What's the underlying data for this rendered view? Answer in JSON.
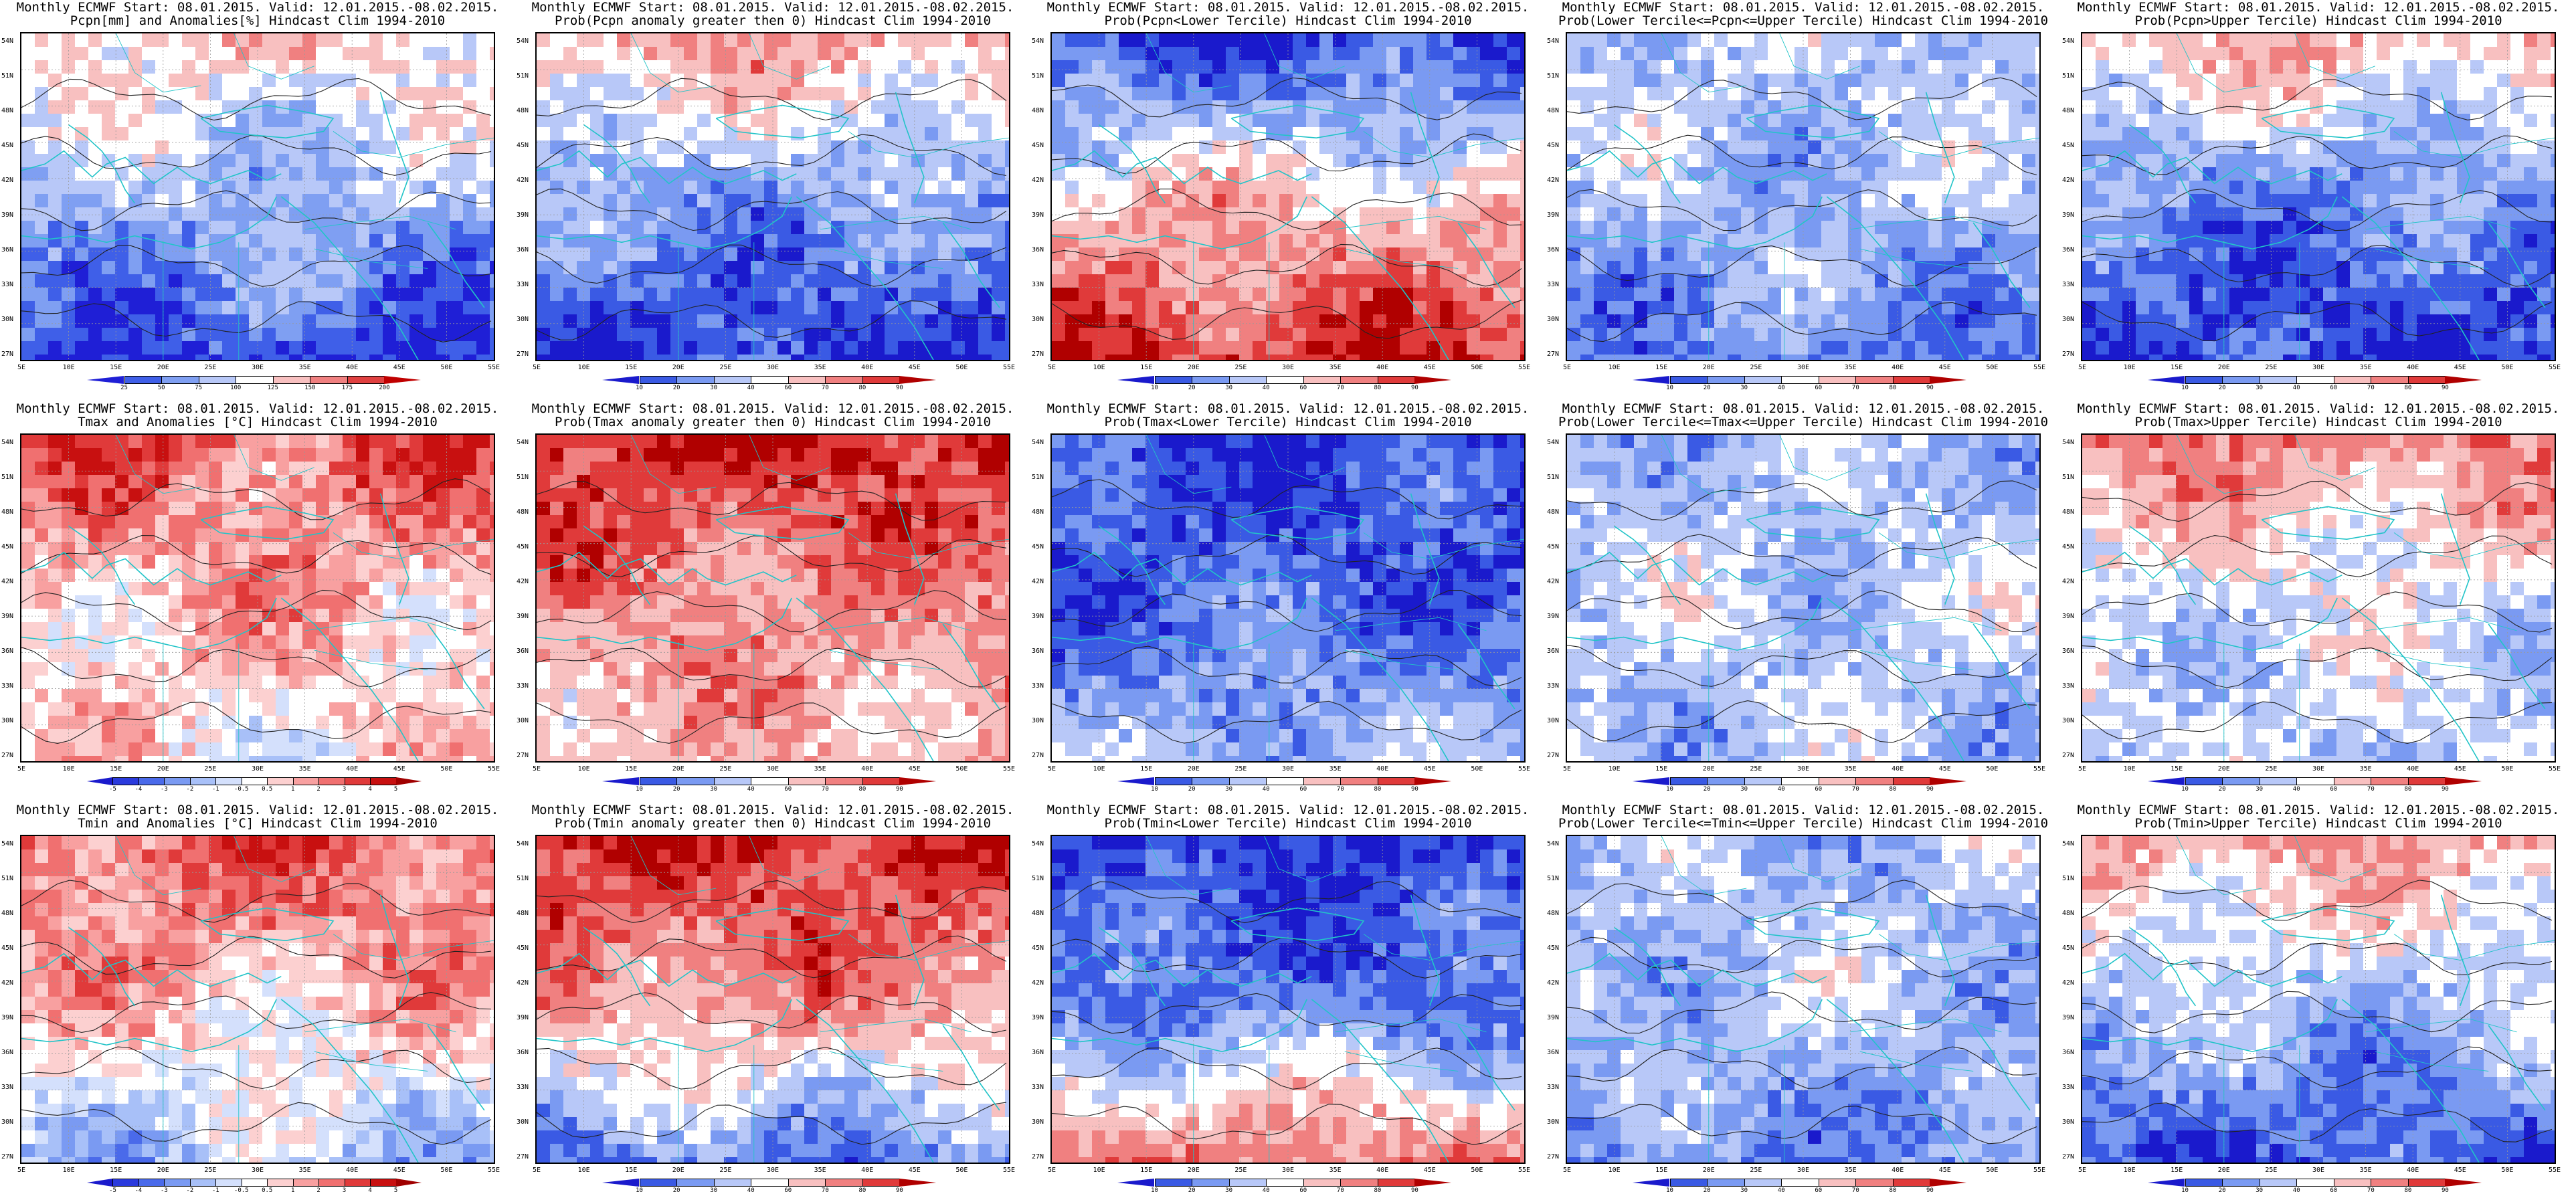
{
  "header_prefix": "Monthly ECMWF Start: 08.01.2015. Valid: 12.01.2015.-08.02.2015.",
  "lat_labels": [
    "54N",
    "51N",
    "48N",
    "45N",
    "42N",
    "39N",
    "36N",
    "33N",
    "30N",
    "27N"
  ],
  "lon_labels": [
    "5E",
    "10E",
    "15E",
    "20E",
    "25E",
    "30E",
    "35E",
    "40E",
    "45E",
    "50E",
    "55E"
  ],
  "colorbars": {
    "pcpn_anom": {
      "levels": [
        "25",
        "50",
        "75",
        "100",
        "125",
        "150",
        "175",
        "200"
      ],
      "colors": [
        "#1f1fd6",
        "#3f5fe8",
        "#7f9ff2",
        "#b8c8f8",
        "#ffffff",
        "#f8c0c0",
        "#f08080",
        "#e04040",
        "#c00000"
      ]
    },
    "temp_anom": {
      "levels": [
        "-5",
        "-4",
        "-3",
        "-2",
        "-1",
        "-0.5",
        "0.5",
        "1",
        "2",
        "3",
        "4",
        "5"
      ],
      "colors": [
        "#1a1acc",
        "#2a3add",
        "#4a6aea",
        "#7a9af2",
        "#a8c0f8",
        "#d4e0fc",
        "#ffffff",
        "#fcd0d0",
        "#f8a0a0",
        "#f07070",
        "#e03a3a",
        "#c81010",
        "#a00000"
      ]
    },
    "prob": {
      "levels": [
        "10",
        "20",
        "30",
        "40",
        "60",
        "70",
        "80",
        "90"
      ],
      "colors": [
        "#1a1acc",
        "#3a5ae4",
        "#7a9af2",
        "#b8c8f8",
        "#ffffff",
        "#f8c0c0",
        "#f08080",
        "#e03a3a",
        "#b00000"
      ]
    }
  },
  "rows": [
    {
      "variable": "pcpn",
      "panels": [
        {
          "title": "Pcpn[mm] and Anomalies[%] Hindcast Clim 1994-2010",
          "cbar": "pcpn_anom",
          "map": {
            "north": 0.15,
            "mid": -0.35,
            "south": -0.85,
            "seed": 3
          }
        },
        {
          "title": "Prob(Pcpn anomaly greater then 0) Hindcast Clim 1994-2010",
          "cbar": "prob",
          "map": {
            "north": 0.35,
            "mid": -0.45,
            "south": -0.9,
            "seed": 7
          }
        },
        {
          "title": "Prob(Pcpn<Lower Tercile) Hindcast Clim 1994-2010",
          "cbar": "prob",
          "map": {
            "north": -0.85,
            "mid": 0.2,
            "south": 0.85,
            "seed": 11
          }
        },
        {
          "title": "Prob(Lower Tercile<=Pcpn<=Upper Tercile) Hindcast Clim 1994-2010",
          "cbar": "prob",
          "map": {
            "north": -0.2,
            "mid": -0.3,
            "south": -0.6,
            "seed": 13
          }
        },
        {
          "title": "Prob(Pcpn>Upper Tercile) Hindcast Clim 1994-2010",
          "cbar": "prob",
          "map": {
            "north": 0.25,
            "mid": -0.55,
            "south": -0.9,
            "seed": 17
          }
        }
      ]
    },
    {
      "variable": "tmax",
      "panels": [
        {
          "title": "Tmax and Anomalies [°C] Hindcast Clim 1994-2010",
          "cbar": "temp_anom",
          "map": {
            "north": 0.55,
            "mid": 0.25,
            "south": 0.05,
            "seed": 19
          }
        },
        {
          "title": "Prob(Tmax anomaly greater then 0) Hindcast Clim 1994-2010",
          "cbar": "prob",
          "map": {
            "north": 0.85,
            "mid": 0.45,
            "south": 0.25,
            "seed": 23
          }
        },
        {
          "title": "Prob(Tmax<Lower Tercile) Hindcast Clim 1994-2010",
          "cbar": "prob",
          "map": {
            "north": -0.85,
            "mid": -0.7,
            "south": -0.3,
            "seed": 29
          }
        },
        {
          "title": "Prob(Lower Tercile<=Tmax<=Upper Tercile) Hindcast Clim 1994-2010",
          "cbar": "prob",
          "map": {
            "north": -0.3,
            "mid": -0.2,
            "south": -0.25,
            "seed": 31
          }
        },
        {
          "title": "Prob(Tmax>Upper Tercile) Hindcast Clim 1994-2010",
          "cbar": "prob",
          "map": {
            "north": 0.45,
            "mid": -0.1,
            "south": -0.2,
            "seed": 37
          }
        }
      ]
    },
    {
      "variable": "tmin",
      "panels": [
        {
          "title": "Tmin and Anomalies [°C] Hindcast Clim 1994-2010",
          "cbar": "temp_anom",
          "map": {
            "north": 0.55,
            "mid": 0.2,
            "south": -0.3,
            "seed": 41
          }
        },
        {
          "title": "Prob(Tmin anomaly greater then 0) Hindcast Clim 1994-2010",
          "cbar": "prob",
          "map": {
            "north": 0.85,
            "mid": 0.4,
            "south": -0.6,
            "seed": 43
          }
        },
        {
          "title": "Prob(Tmin<Lower Tercile) Hindcast Clim 1994-2010",
          "cbar": "prob",
          "map": {
            "north": -0.85,
            "mid": -0.6,
            "south": 0.55,
            "seed": 47
          }
        },
        {
          "title": "Prob(Lower Tercile<=Tmin<=Upper Tercile) Hindcast Clim 1994-2010",
          "cbar": "prob",
          "map": {
            "north": -0.3,
            "mid": -0.25,
            "south": -0.55,
            "seed": 53
          }
        },
        {
          "title": "Prob(Tmin>Upper Tercile) Hindcast Clim 1994-2010",
          "cbar": "prob",
          "map": {
            "north": 0.35,
            "mid": -0.3,
            "south": -0.75,
            "seed": 59
          }
        }
      ]
    }
  ]
}
